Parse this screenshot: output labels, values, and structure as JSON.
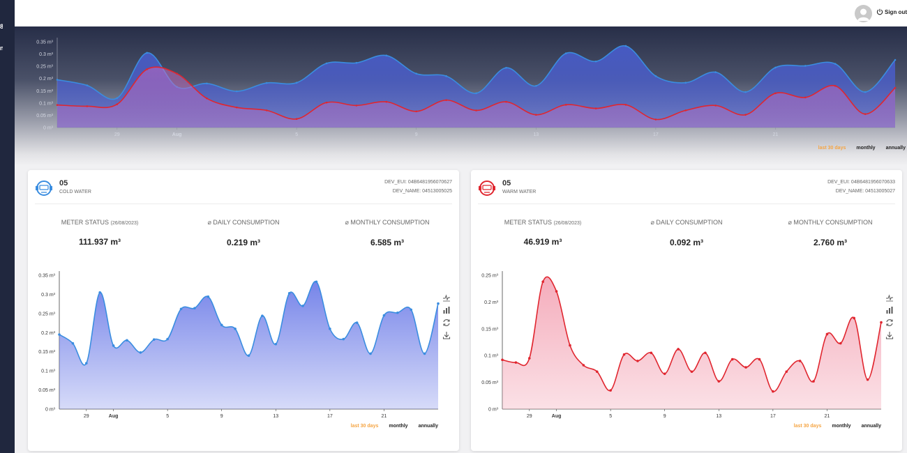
{
  "sidebar": {
    "items": [
      "8",
      "n"
    ]
  },
  "header": {
    "signout_label": "Sign out"
  },
  "range_options": [
    "last 30 days",
    "monthly",
    "annually"
  ],
  "colors": {
    "cold": "#3a8de0",
    "cold_fill": "#6f7ee8",
    "warm": "#e0262f",
    "warm_fill": "#f4a8b8",
    "active_range": "#f5a442"
  },
  "hero_chart": {
    "chart_data": {
      "type": "area",
      "x_ticks": [
        "29",
        "Aug",
        "5",
        "9",
        "13",
        "17",
        "21"
      ],
      "y_ticks": [
        "0 m³",
        "0.05 m³",
        "0.1 m³",
        "0.15 m³",
        "0.2 m³",
        "0.25 m³",
        "0.3 m³",
        "0.35 m³"
      ],
      "ylim": [
        0,
        0.35
      ],
      "series": [
        {
          "values": [
            0.195,
            0.172,
            0.12,
            0.305,
            0.166,
            0.18,
            0.148,
            0.182,
            0.183,
            0.262,
            0.264,
            0.294,
            0.22,
            0.21,
            0.14,
            0.244,
            0.17,
            0.303,
            0.27,
            0.333,
            0.21,
            0.183,
            0.226,
            0.145,
            0.245,
            0.252,
            0.26,
            0.145,
            0.276
          ]
        },
        {
          "values": [
            0.092,
            0.087,
            0.095,
            0.238,
            0.22,
            0.119,
            0.082,
            0.07,
            0.035,
            0.102,
            0.09,
            0.105,
            0.066,
            0.112,
            0.07,
            0.105,
            0.052,
            0.093,
            0.078,
            0.093,
            0.033,
            0.07,
            0.09,
            0.052,
            0.14,
            0.123,
            0.17,
            0.055,
            0.162
          ]
        }
      ]
    }
  },
  "cards": [
    {
      "number": "05",
      "type": "COLD WATER",
      "dev_eui": "DEV_EUI: 04B6481956070627",
      "dev_name": "DEV_NAME: 04513005025",
      "stats": [
        {
          "label": "METER STATUS",
          "note": "(26/08/2023)",
          "value": "111.937 m³"
        },
        {
          "label": "⌀ DAILY CONSUMPTION",
          "note": "",
          "value": "0.219 m³"
        },
        {
          "label": "⌀ MONTHLY CONSUMPTION",
          "note": "",
          "value": "6.585 m³"
        }
      ],
      "chart_data": {
        "type": "area",
        "x_ticks": [
          "29",
          "Aug",
          "5",
          "9",
          "13",
          "17",
          "21"
        ],
        "y_ticks": [
          "0 m³",
          "0.05 m³",
          "0.1 m³",
          "0.15 m³",
          "0.2 m³",
          "0.25 m³",
          "0.3 m³",
          "0.35 m³"
        ],
        "ylim": [
          0,
          0.35
        ],
        "values": [
          0.195,
          0.172,
          0.12,
          0.305,
          0.166,
          0.18,
          0.148,
          0.182,
          0.183,
          0.262,
          0.264,
          0.294,
          0.22,
          0.21,
          0.14,
          0.244,
          0.17,
          0.303,
          0.27,
          0.333,
          0.21,
          0.183,
          0.226,
          0.145,
          0.245,
          0.252,
          0.26,
          0.145,
          0.276
        ]
      }
    },
    {
      "number": "05",
      "type": "WARM WATER",
      "dev_eui": "DEV_EUI: 04B6481956070633",
      "dev_name": "DEV_NAME: 04513005027",
      "stats": [
        {
          "label": "METER STATUS",
          "note": "(26/08/2023)",
          "value": "46.919 m³"
        },
        {
          "label": "⌀ DAILY CONSUMPTION",
          "note": "",
          "value": "0.092 m³"
        },
        {
          "label": "⌀ MONTHLY CONSUMPTION",
          "note": "",
          "value": "2.760 m³"
        }
      ],
      "chart_data": {
        "type": "area",
        "x_ticks": [
          "29",
          "Aug",
          "5",
          "9",
          "13",
          "17",
          "21"
        ],
        "y_ticks": [
          "0 m³",
          "0.05 m³",
          "0.1 m³",
          "0.15 m³",
          "0.2 m³",
          "0.25 m³"
        ],
        "ylim": [
          0,
          0.25
        ],
        "values": [
          0.092,
          0.087,
          0.095,
          0.238,
          0.22,
          0.119,
          0.082,
          0.07,
          0.035,
          0.102,
          0.09,
          0.105,
          0.066,
          0.112,
          0.07,
          0.105,
          0.052,
          0.093,
          0.078,
          0.093,
          0.033,
          0.07,
          0.09,
          0.052,
          0.14,
          0.123,
          0.17,
          0.055,
          0.162
        ]
      }
    }
  ],
  "chart_tools": [
    "line-chart-icon",
    "bar-chart-icon",
    "refresh-icon",
    "download-icon"
  ]
}
